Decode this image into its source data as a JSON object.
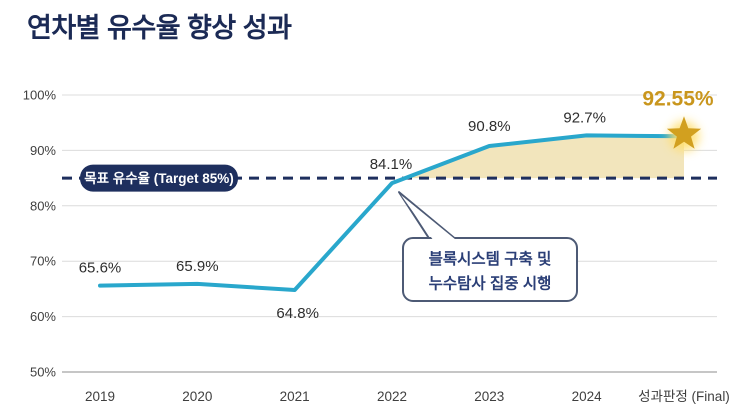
{
  "title": "연차별 유수율 향상 성과",
  "chart_data": {
    "type": "line",
    "categories": [
      "2019",
      "2020",
      "2021",
      "2022",
      "2023",
      "2024",
      "성과판정 (Final)"
    ],
    "values": [
      65.6,
      65.9,
      64.8,
      84.1,
      90.8,
      92.7,
      92.55
    ],
    "point_labels": [
      "65.6%",
      "65.9%",
      "64.8%",
      "84.1%",
      "90.8%",
      "92.7%"
    ],
    "final_point_label": "92.55%",
    "final_marker": "star",
    "ylim": [
      50,
      100
    ],
    "y_ticks": [
      100,
      90,
      80,
      70,
      60,
      50
    ],
    "y_tick_suffix": "%",
    "grid": true,
    "legend": "none",
    "target_line": {
      "value": 85,
      "style": "dashed",
      "label": "목표 유수율 (Target 85%)"
    },
    "annotation": {
      "lines": [
        "블록시스템 구축 및",
        "누수탐사 집중 시행"
      ],
      "attached_to_category": "2022"
    },
    "highlight_area": "between trend line and 85% target line, from the 85% crossing (after 2022) to the final point"
  },
  "colors": {
    "title": "#1b2a55",
    "line": "#29a7cc",
    "area": "#f2e5bc",
    "target_navy": "#1e2f5e",
    "gold_text": "#c9961d",
    "star_fill": "#d2a01f",
    "star_glow": "#ffdf70",
    "grid": "#dcdcdc",
    "axis_line": "#b3b3b3",
    "tick_text": "#3f3f3f",
    "label_text": "#2e2e2e",
    "callout_border": "#4d5a75",
    "callout_text": "#2b3f77"
  }
}
